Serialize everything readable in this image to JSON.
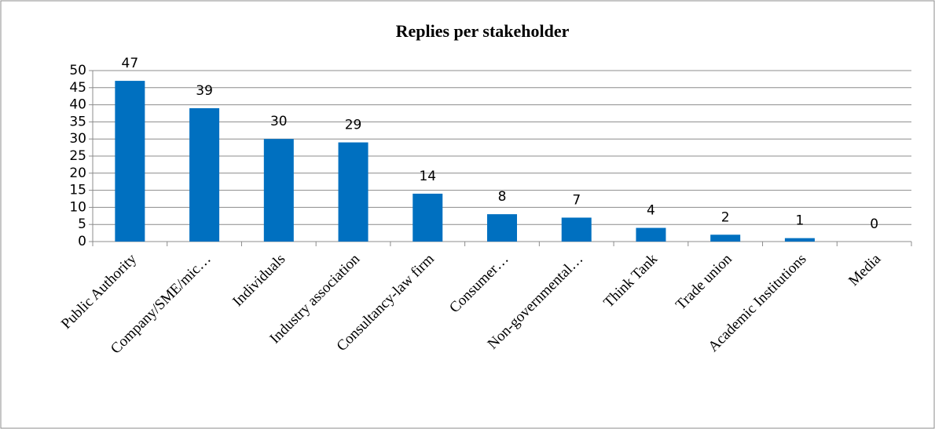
{
  "chart_data": {
    "type": "bar",
    "title": "Replies per stakeholder",
    "categories": [
      "Public Authority",
      "Company/SME/mic…",
      "Individuals",
      "Industry association",
      "Consultancy-law firm",
      "Consumer…",
      "Non-governmental…",
      "Think Tank",
      "Trade union",
      "Academic Institutions",
      "Media"
    ],
    "values": [
      47,
      39,
      30,
      29,
      14,
      8,
      7,
      4,
      2,
      1,
      0
    ],
    "color": "#0070c0",
    "ylim": [
      0,
      50
    ],
    "yticks": [
      0,
      5,
      10,
      15,
      20,
      25,
      30,
      35,
      40,
      45,
      50
    ],
    "grid": true
  }
}
